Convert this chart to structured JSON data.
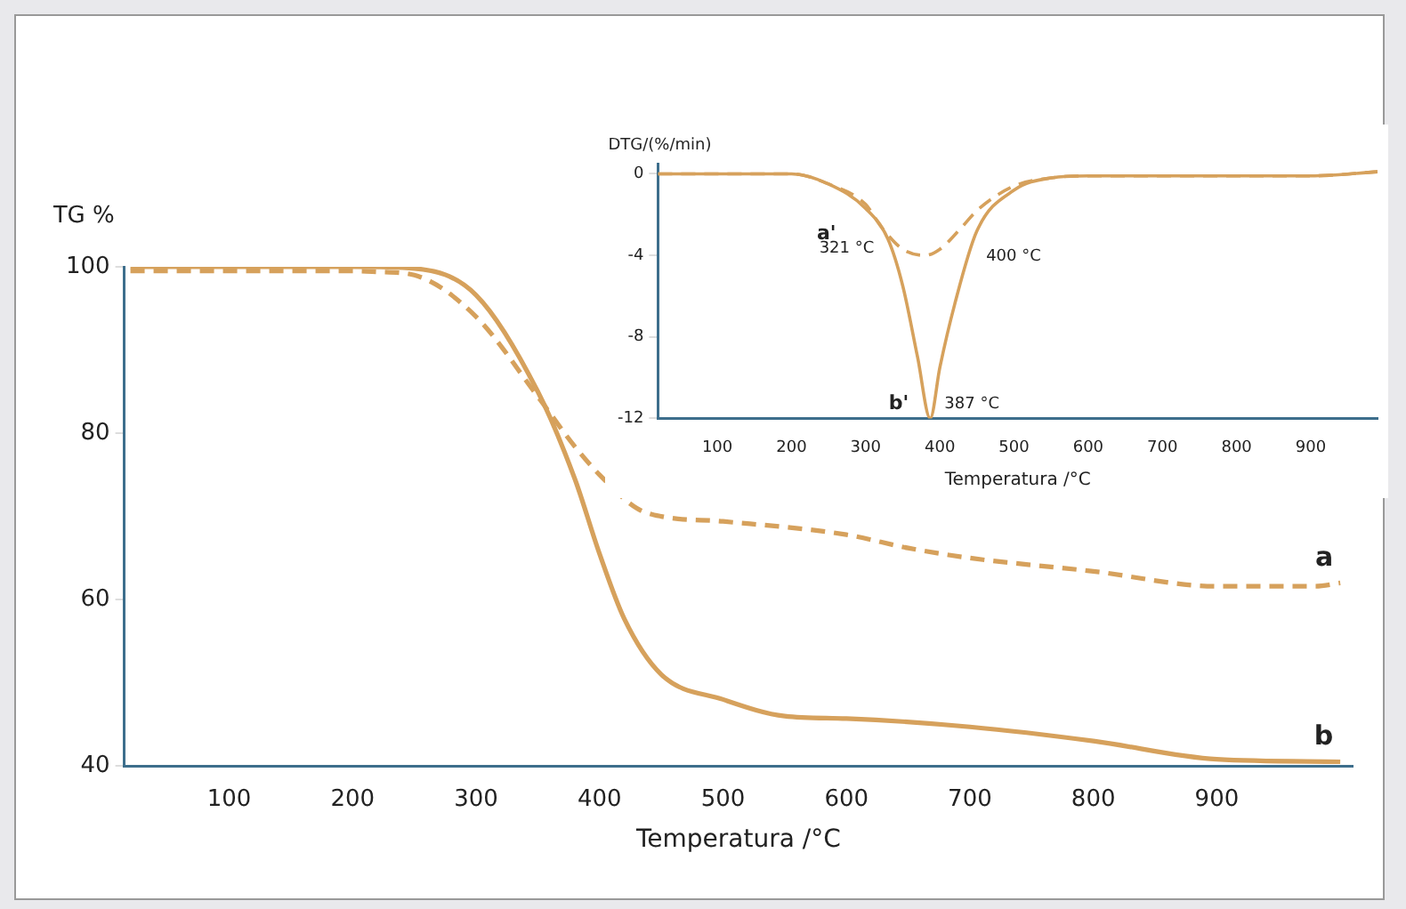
{
  "chart_data": [
    {
      "type": "line",
      "xlabel": "Temperatura /°C",
      "ylabel": "TG %",
      "xlim": [
        15,
        1010
      ],
      "ylim": [
        40,
        100
      ],
      "xticks": [
        100,
        200,
        300,
        400,
        500,
        600,
        700,
        800,
        900
      ],
      "yticks": [
        40,
        60,
        80,
        100
      ],
      "grid": false,
      "legend": false,
      "marker": "none",
      "series": [
        {
          "name": "a",
          "color": "#d6a15c",
          "line_style": "dashed",
          "x": [
            20,
            100,
            200,
            220,
            250,
            300,
            350,
            380,
            400,
            430,
            450,
            500,
            600,
            650,
            700,
            800,
            900,
            980,
            1000
          ],
          "values": [
            99.5,
            99.5,
            99.5,
            99.4,
            99,
            94,
            84.4,
            78.4,
            75,
            71,
            70,
            69.4,
            67.8,
            66.2,
            65,
            63.4,
            61.6,
            61.6,
            62
          ]
        },
        {
          "name": "b",
          "color": "#d6a15c",
          "line_style": "solid",
          "x": [
            20,
            100,
            200,
            250,
            300,
            350,
            380,
            400,
            420,
            450,
            500,
            550,
            600,
            700,
            800,
            900,
            1000
          ],
          "values": [
            100,
            100,
            100,
            99.8,
            96.6,
            85,
            74.5,
            65.5,
            57.7,
            51,
            48,
            46,
            45.7,
            44.7,
            43,
            40.8,
            40.5
          ]
        }
      ]
    },
    {
      "type": "line",
      "xlabel": "Temperatura /°C",
      "ylabel": "DTG/(%/min)",
      "xlim": [
        20,
        990
      ],
      "ylim": [
        -12,
        0.5
      ],
      "xticks": [
        100,
        200,
        300,
        400,
        500,
        600,
        700,
        800,
        900
      ],
      "yticks": [
        -12,
        -8,
        -4,
        0
      ],
      "grid": false,
      "legend": false,
      "marker": "none",
      "annotations": [
        {
          "text": "321 °C",
          "x": 321,
          "y": -2.6
        },
        {
          "text": "400 °C",
          "x": 400,
          "y": -3.7
        },
        {
          "text": "387 °C",
          "x": 387,
          "y": -12
        }
      ],
      "series": [
        {
          "name": "a'",
          "color": "#d6a15c",
          "line_style": "dashed",
          "x": [
            20,
            100,
            200,
            250,
            300,
            321,
            350,
            380,
            400,
            430,
            450,
            500,
            550,
            600,
            900,
            990
          ],
          "values": [
            0,
            0,
            0,
            -0.5,
            -1.5,
            -2.6,
            -3.7,
            -4,
            -3.7,
            -2.6,
            -1.8,
            -0.6,
            -0.2,
            -0.1,
            -0.1,
            0.1
          ]
        },
        {
          "name": "b'",
          "color": "#d6a15c",
          "line_style": "solid",
          "x": [
            20,
            100,
            200,
            250,
            300,
            330,
            350,
            370,
            387,
            400,
            420,
            450,
            500,
            550,
            600,
            900,
            990
          ],
          "values": [
            0,
            0,
            0,
            -0.5,
            -1.7,
            -3.2,
            -5.5,
            -9,
            -12,
            -9.5,
            -6.4,
            -2.8,
            -0.8,
            -0.2,
            -0.1,
            -0.1,
            0.1
          ]
        }
      ]
    }
  ]
}
